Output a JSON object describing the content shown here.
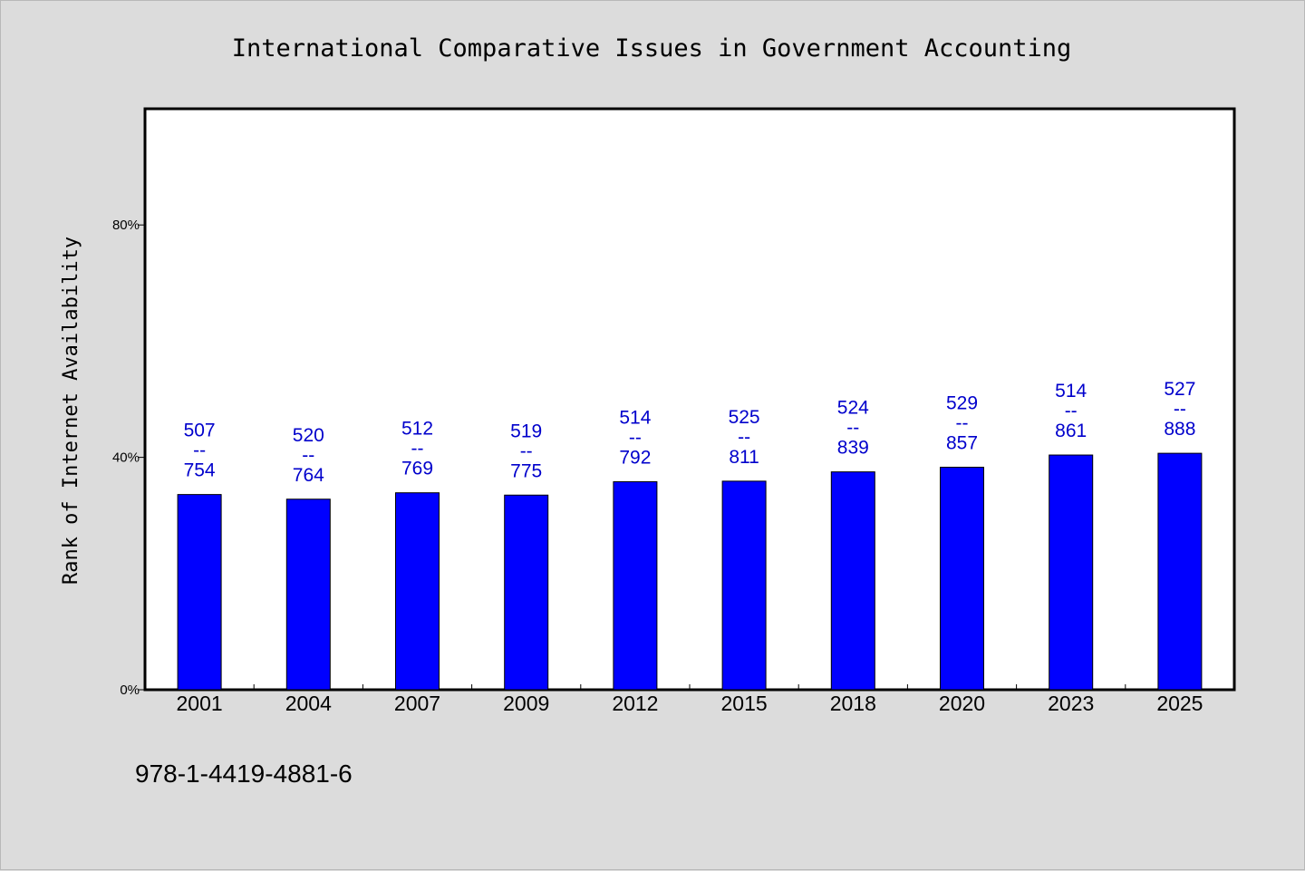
{
  "chart_data": {
    "type": "bar",
    "title": "International Comparative Issues in Government Accounting",
    "xlabel": "",
    "ylabel": "Rank of Internet Availability",
    "categories": [
      "2001",
      "2004",
      "2007",
      "2009",
      "2012",
      "2015",
      "2018",
      "2020",
      "2023",
      "2025"
    ],
    "series": [
      {
        "values": [
          33.6,
          32.8,
          33.9,
          33.5,
          35.8,
          35.9,
          37.5,
          38.3,
          40.4,
          40.7
        ],
        "color": "#0000ff"
      }
    ],
    "data_labels": [
      [
        "507",
        "--",
        "754"
      ],
      [
        "520",
        "--",
        "764"
      ],
      [
        "512",
        "--",
        "769"
      ],
      [
        "519",
        "--",
        "775"
      ],
      [
        "514",
        "--",
        "792"
      ],
      [
        "525",
        "--",
        "811"
      ],
      [
        "524",
        "--",
        "839"
      ],
      [
        "529",
        "--",
        "857"
      ],
      [
        "514",
        "--",
        "861"
      ],
      [
        "527",
        "--",
        "888"
      ]
    ],
    "data_label_color": "#0000cc",
    "yticks": [
      {
        "value": 0,
        "label": "0%"
      },
      {
        "value": 40,
        "label": "40%"
      },
      {
        "value": 80,
        "label": "80%"
      }
    ],
    "ylim": [
      0,
      100
    ],
    "grid": false,
    "legend": "none"
  },
  "footnote": "978-1-4419-4881-6"
}
